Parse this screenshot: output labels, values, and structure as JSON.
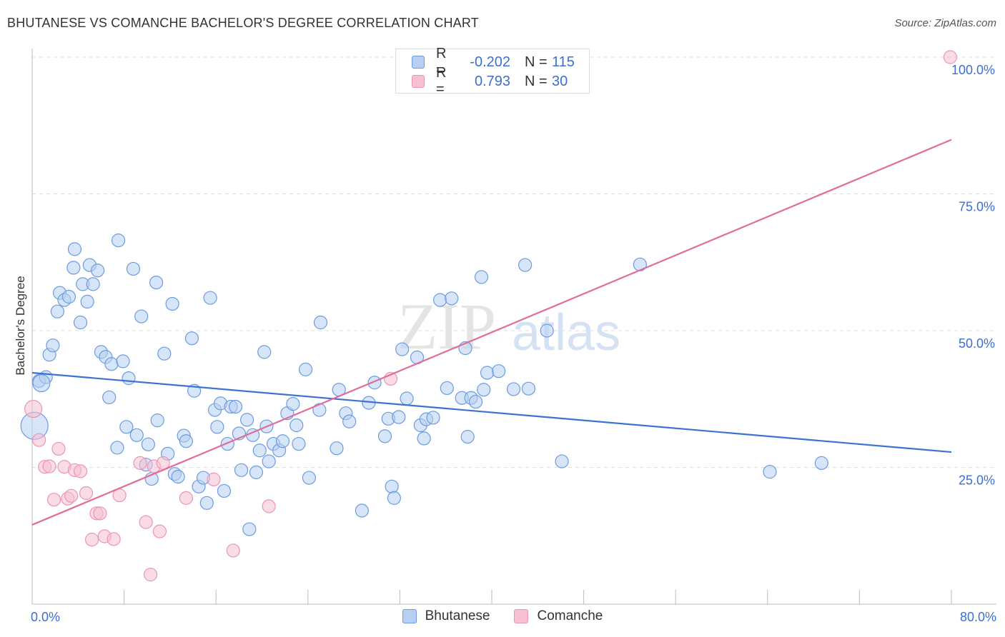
{
  "header": {
    "title": "BHUTANESE VS COMANCHE BACHELOR'S DEGREE CORRELATION CHART",
    "source": "Source: ZipAtlas.com"
  },
  "legend": {
    "rows": [
      {
        "r_label": "R =",
        "r_value": "-0.202",
        "n_label": "N =",
        "n_value": "115"
      },
      {
        "r_label": "R =",
        "r_value": "0.793",
        "n_label": "N =",
        "n_value": "30"
      }
    ]
  },
  "bottom_legend": [
    "Bhutanese",
    "Comanche"
  ],
  "watermark": {
    "zip": "ZIP",
    "atlas": "atlas"
  },
  "colors": {
    "blue": "#3c73d0",
    "blue_fill": "#b6cff3",
    "blue_stroke": "#6d9be0",
    "pink": "#e06d99",
    "pink_fill": "#f6bfd2",
    "pink_stroke": "#eb95b5",
    "tick": "#3b6fd4",
    "grid": "#dddddd"
  },
  "chart_data": {
    "type": "scatter",
    "title": "BHUTANESE VS COMANCHE BACHELOR'S DEGREE CORRELATION CHART",
    "xlabel": "",
    "ylabel": "Bachelor's Degree",
    "xlim": [
      0,
      80
    ],
    "ylim": [
      0,
      100
    ],
    "x_ticks": [
      "0.0%",
      "80.0%"
    ],
    "y_ticks": [
      "25.0%",
      "50.0%",
      "75.0%",
      "100.0%"
    ],
    "y_tick_values": [
      25,
      50,
      75,
      100
    ],
    "grid": true,
    "legend_position": "top-center",
    "series": [
      {
        "name": "Bhutanese",
        "r": -0.202,
        "n": 115,
        "trend": {
          "x": [
            0,
            80
          ],
          "y": [
            42.3,
            27.8
          ]
        },
        "points": [
          [
            0.2,
            32.6
          ],
          [
            0.6,
            40.8
          ],
          [
            1.2,
            41.5
          ],
          [
            1.5,
            45.6
          ],
          [
            1.8,
            47.3
          ],
          [
            2.2,
            53.5
          ],
          [
            2.4,
            56.9
          ],
          [
            2.8,
            55.6
          ],
          [
            3.2,
            56.2
          ],
          [
            3.6,
            61.5
          ],
          [
            3.7,
            64.9
          ],
          [
            4.2,
            51.5
          ],
          [
            4.4,
            58.5
          ],
          [
            4.8,
            55.3
          ],
          [
            5.0,
            62.0
          ],
          [
            5.3,
            58.5
          ],
          [
            5.7,
            61.0
          ],
          [
            6.0,
            46.1
          ],
          [
            6.4,
            45.2
          ],
          [
            6.7,
            37.8
          ],
          [
            6.9,
            43.9
          ],
          [
            7.4,
            28.6
          ],
          [
            7.5,
            66.5
          ],
          [
            7.9,
            44.4
          ],
          [
            8.2,
            32.4
          ],
          [
            8.4,
            41.3
          ],
          [
            8.8,
            61.3
          ],
          [
            9.1,
            30.9
          ],
          [
            9.5,
            52.6
          ],
          [
            9.9,
            25.5
          ],
          [
            10.1,
            29.2
          ],
          [
            10.4,
            22.9
          ],
          [
            10.8,
            58.8
          ],
          [
            10.9,
            33.6
          ],
          [
            11.5,
            45.8
          ],
          [
            11.8,
            27.5
          ],
          [
            12.2,
            54.9
          ],
          [
            12.4,
            23.8
          ],
          [
            12.7,
            23.3
          ],
          [
            13.2,
            30.8
          ],
          [
            13.4,
            29.8
          ],
          [
            13.9,
            48.6
          ],
          [
            14.1,
            39.0
          ],
          [
            14.5,
            21.5
          ],
          [
            14.9,
            23.1
          ],
          [
            15.2,
            18.5
          ],
          [
            15.5,
            56.0
          ],
          [
            15.9,
            35.5
          ],
          [
            16.1,
            32.4
          ],
          [
            16.4,
            36.7
          ],
          [
            16.7,
            20.7
          ],
          [
            17.0,
            29.3
          ],
          [
            17.3,
            36.1
          ],
          [
            17.7,
            36.1
          ],
          [
            18.0,
            31.2
          ],
          [
            18.2,
            24.5
          ],
          [
            18.7,
            33.7
          ],
          [
            18.9,
            13.7
          ],
          [
            19.2,
            30.9
          ],
          [
            19.5,
            24.1
          ],
          [
            19.8,
            28.1
          ],
          [
            20.2,
            46.1
          ],
          [
            20.4,
            32.5
          ],
          [
            20.6,
            26.1
          ],
          [
            21.0,
            29.3
          ],
          [
            21.5,
            28.1
          ],
          [
            21.8,
            29.8
          ],
          [
            22.2,
            34.9
          ],
          [
            22.7,
            36.6
          ],
          [
            23.0,
            32.7
          ],
          [
            23.2,
            29.3
          ],
          [
            23.8,
            42.9
          ],
          [
            24.1,
            23.1
          ],
          [
            25.0,
            35.5
          ],
          [
            25.1,
            51.5
          ],
          [
            26.5,
            28.5
          ],
          [
            26.7,
            39.2
          ],
          [
            27.3,
            34.9
          ],
          [
            27.6,
            33.4
          ],
          [
            28.7,
            17.1
          ],
          [
            29.3,
            36.8
          ],
          [
            29.8,
            40.5
          ],
          [
            30.7,
            30.7
          ],
          [
            31.0,
            33.9
          ],
          [
            31.3,
            21.5
          ],
          [
            31.5,
            19.4
          ],
          [
            31.9,
            34.2
          ],
          [
            32.2,
            46.6
          ],
          [
            32.6,
            37.6
          ],
          [
            33.5,
            45.1
          ],
          [
            33.8,
            32.7
          ],
          [
            34.1,
            30.3
          ],
          [
            34.3,
            33.8
          ],
          [
            34.9,
            34.1
          ],
          [
            35.5,
            55.6
          ],
          [
            36.1,
            39.5
          ],
          [
            36.5,
            55.9
          ],
          [
            37.4,
            37.7
          ],
          [
            37.7,
            46.8
          ],
          [
            37.9,
            30.6
          ],
          [
            38.2,
            37.7
          ],
          [
            38.6,
            37.0
          ],
          [
            39.1,
            59.8
          ],
          [
            39.3,
            39.2
          ],
          [
            39.6,
            42.3
          ],
          [
            40.6,
            42.6
          ],
          [
            41.9,
            39.3
          ],
          [
            42.9,
            62.0
          ],
          [
            43.2,
            39.4
          ],
          [
            44.8,
            50.0
          ],
          [
            46.1,
            26.1
          ],
          [
            52.9,
            62.1
          ],
          [
            64.2,
            24.2
          ],
          [
            68.7,
            25.8
          ],
          [
            0.8,
            40.4
          ]
        ]
      },
      {
        "name": "Comanche",
        "r": 0.793,
        "n": 30,
        "trend": {
          "x": [
            0,
            80
          ],
          "y": [
            14.5,
            84.9
          ]
        },
        "points": [
          [
            0.1,
            35.7
          ],
          [
            0.6,
            30.0
          ],
          [
            1.1,
            25.1
          ],
          [
            1.5,
            25.2
          ],
          [
            1.9,
            19.1
          ],
          [
            2.3,
            28.4
          ],
          [
            2.8,
            25.1
          ],
          [
            3.1,
            19.3
          ],
          [
            3.4,
            19.8
          ],
          [
            3.7,
            24.5
          ],
          [
            4.2,
            24.3
          ],
          [
            4.7,
            20.3
          ],
          [
            5.2,
            11.8
          ],
          [
            5.6,
            16.6
          ],
          [
            5.9,
            16.6
          ],
          [
            6.3,
            12.4
          ],
          [
            7.1,
            11.9
          ],
          [
            7.6,
            19.9
          ],
          [
            9.4,
            25.8
          ],
          [
            9.9,
            15.0
          ],
          [
            10.3,
            5.4
          ],
          [
            10.6,
            25.2
          ],
          [
            11.1,
            13.3
          ],
          [
            11.4,
            25.8
          ],
          [
            13.4,
            19.4
          ],
          [
            15.8,
            22.8
          ],
          [
            17.5,
            9.8
          ],
          [
            20.6,
            17.9
          ],
          [
            31.2,
            41.2
          ],
          [
            79.9,
            100.0
          ]
        ]
      }
    ]
  }
}
